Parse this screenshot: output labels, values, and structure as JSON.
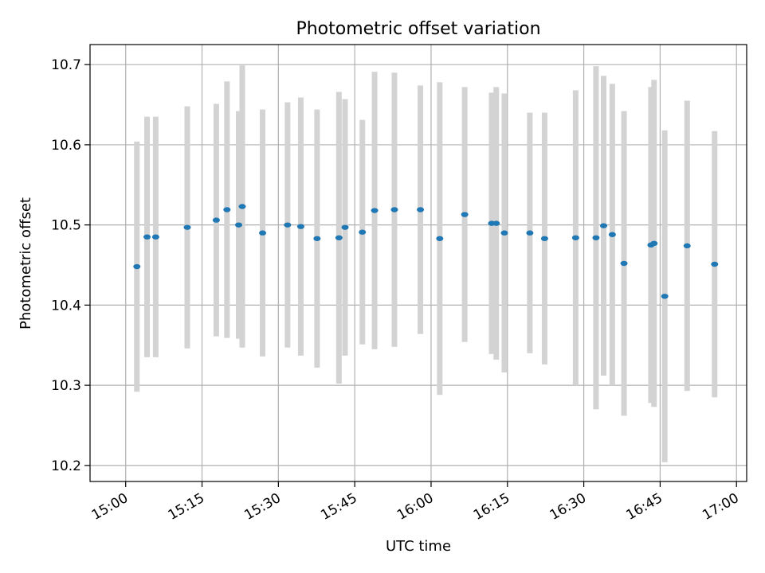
{
  "chart_data": {
    "type": "scatter",
    "title": "Photometric offset variation",
    "xlabel": "UTC time",
    "ylabel": "Photometric offset",
    "xlim": [
      "14:53",
      "17:02"
    ],
    "ylim": [
      10.18,
      10.725
    ],
    "grid": true,
    "x_ticks": [
      "15:00",
      "15:15",
      "15:30",
      "15:45",
      "16:00",
      "16:15",
      "16:30",
      "16:45",
      "17:00"
    ],
    "y_ticks": [
      "10.2",
      "10.3",
      "10.4",
      "10.5",
      "10.6",
      "10.7"
    ],
    "colors": {
      "points": "#1f77b4",
      "error_bars": "#d3d3d3",
      "grid": "#b0b0b0"
    },
    "series": [
      {
        "points": [
          {
            "x": "15:02:12",
            "y": 10.448,
            "err": 0.156
          },
          {
            "x": "15:04:12",
            "y": 10.485,
            "err": 0.15
          },
          {
            "x": "15:05:54",
            "y": 10.485,
            "err": 0.15
          },
          {
            "x": "15:12:06",
            "y": 10.497,
            "err": 0.151
          },
          {
            "x": "15:17:48",
            "y": 10.506,
            "err": 0.145
          },
          {
            "x": "15:19:54",
            "y": 10.519,
            "err": 0.16
          },
          {
            "x": "15:22:12",
            "y": 10.5,
            "err": 0.142
          },
          {
            "x": "15:22:54",
            "y": 10.523,
            "err": 0.176
          },
          {
            "x": "15:26:54",
            "y": 10.49,
            "err": 0.154
          },
          {
            "x": "15:31:48",
            "y": 10.5,
            "err": 0.153
          },
          {
            "x": "15:34:24",
            "y": 10.498,
            "err": 0.161
          },
          {
            "x": "15:37:36",
            "y": 10.483,
            "err": 0.161
          },
          {
            "x": "15:41:54",
            "y": 10.484,
            "err": 0.182
          },
          {
            "x": "15:43:06",
            "y": 10.497,
            "err": 0.16
          },
          {
            "x": "15:46:30",
            "y": 10.491,
            "err": 0.14
          },
          {
            "x": "15:48:54",
            "y": 10.518,
            "err": 0.173
          },
          {
            "x": "15:52:48",
            "y": 10.519,
            "err": 0.171
          },
          {
            "x": "15:57:54",
            "y": 10.519,
            "err": 0.155
          },
          {
            "x": "16:01:42",
            "y": 10.483,
            "err": 0.195
          },
          {
            "x": "16:06:36",
            "y": 10.513,
            "err": 0.159
          },
          {
            "x": "16:11:54",
            "y": 10.502,
            "err": 0.163
          },
          {
            "x": "16:12:48",
            "y": 10.502,
            "err": 0.17
          },
          {
            "x": "16:14:24",
            "y": 10.49,
            "err": 0.174
          },
          {
            "x": "16:19:24",
            "y": 10.49,
            "err": 0.15
          },
          {
            "x": "16:22:18",
            "y": 10.483,
            "err": 0.157
          },
          {
            "x": "16:28:24",
            "y": 10.484,
            "err": 0.184
          },
          {
            "x": "16:32:24",
            "y": 10.484,
            "err": 0.214
          },
          {
            "x": "16:33:54",
            "y": 10.499,
            "err": 0.187
          },
          {
            "x": "16:35:36",
            "y": 10.488,
            "err": 0.188
          },
          {
            "x": "16:37:54",
            "y": 10.452,
            "err": 0.19
          },
          {
            "x": "16:43:12",
            "y": 10.475,
            "err": 0.197
          },
          {
            "x": "16:43:48",
            "y": 10.477,
            "err": 0.204
          },
          {
            "x": "16:45:54",
            "y": 10.411,
            "err": 0.207
          },
          {
            "x": "16:50:18",
            "y": 10.474,
            "err": 0.181
          },
          {
            "x": "16:55:42",
            "y": 10.451,
            "err": 0.166
          }
        ]
      }
    ]
  }
}
